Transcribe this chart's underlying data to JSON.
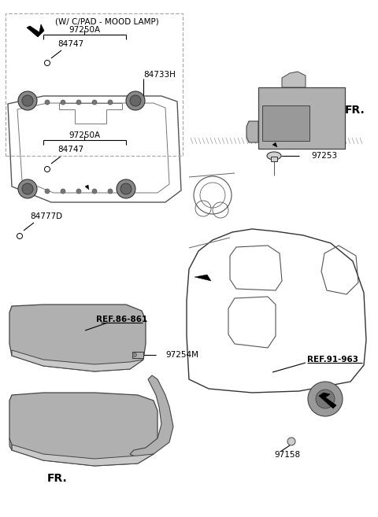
{
  "bg_color": "#ffffff",
  "fig_width": 4.8,
  "fig_height": 6.57,
  "dpi": 100,
  "labels": {
    "mood_lamp_box": "(W/ C/PAD - MOOD LAMP)",
    "97250A_top": "97250A",
    "84747_top": "84747",
    "84733H": "84733H",
    "97250A_mid": "97250A",
    "84747_mid": "84747",
    "84777D": "84777D",
    "97253": "97253",
    "FR_top": "FR.",
    "REF_86_861": "REF.86-861",
    "97254M": "97254M",
    "REF_91_963": "REF.91-963",
    "97158": "97158",
    "FR_bot": "FR."
  },
  "colors": {
    "line": "#000000",
    "dash_box": "#aaaaaa",
    "part_gray": "#b0b0b0",
    "part_dark": "#888888",
    "text": "#000000",
    "bg": "#ffffff",
    "ref_underline": "#000000"
  }
}
